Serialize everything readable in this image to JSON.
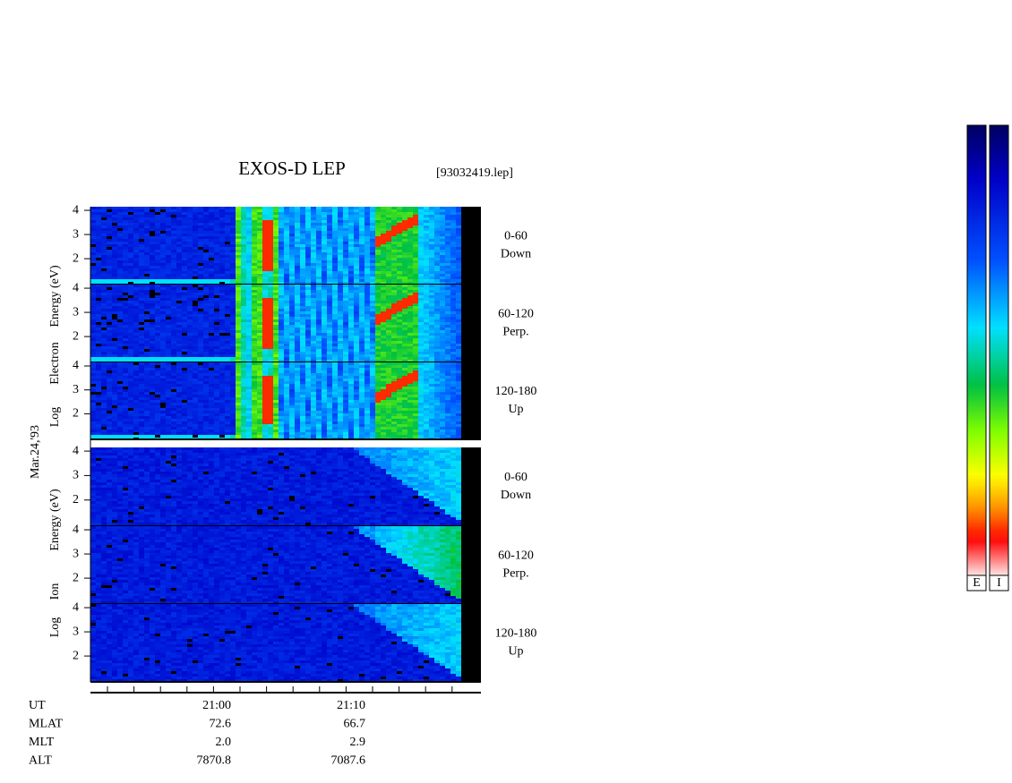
{
  "header": {
    "title": "EXOS-D LEP",
    "file": "[93032419.lep]"
  },
  "date": "Mar.24,'93",
  "ylim": [
    0.93,
    4.15
  ],
  "groups": [
    {
      "kind": "electron",
      "label_parts": [
        "Log",
        "Electron",
        "Energy (eV)"
      ],
      "panels": [
        {
          "label": [
            "0-60",
            "Down"
          ],
          "yticks": [
            2,
            3,
            4
          ]
        },
        {
          "label": [
            "60-120",
            "Perp."
          ],
          "yticks": [
            2,
            3,
            4
          ]
        },
        {
          "label": [
            "120-180",
            "Up"
          ],
          "yticks": [
            2,
            3,
            4
          ]
        }
      ]
    },
    {
      "kind": "ion",
      "label_parts": [
        "Log",
        "Ion",
        "Energy (eV)"
      ],
      "panels": [
        {
          "label": [
            "0-60",
            "Down"
          ],
          "yticks": [
            2,
            3,
            4
          ]
        },
        {
          "label": [
            "60-120",
            "Perp."
          ],
          "yticks": [
            2,
            3,
            4
          ]
        },
        {
          "label": [
            "120-180",
            "Up"
          ],
          "yticks": [
            2,
            3,
            4
          ]
        }
      ]
    }
  ],
  "table": {
    "rows": [
      {
        "label": "UT",
        "values": [
          "21:00",
          "21:10"
        ]
      },
      {
        "label": "MLAT",
        "values": [
          72.6,
          66.7
        ]
      },
      {
        "label": "MLT",
        "values": [
          "2.0",
          "2.9"
        ]
      },
      {
        "label": "ALT",
        "values": [
          7870.8,
          7087.6
        ]
      }
    ]
  },
  "colorbar": {
    "labels": [
      "E",
      "I"
    ]
  }
}
